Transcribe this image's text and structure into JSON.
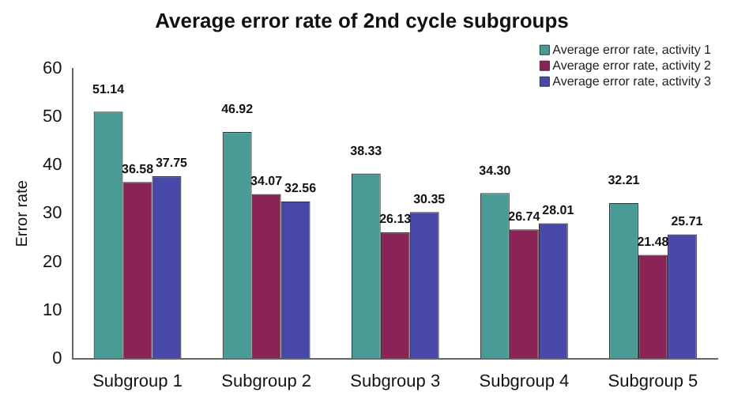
{
  "chart_data": {
    "type": "bar",
    "title": "Average error rate of 2nd cycle subgroups",
    "ylabel": "Error rate",
    "categories": [
      "Subgroup 1",
      "Subgroup 2",
      "Subgroup 3",
      "Subgroup 4",
      "Subgroup 5"
    ],
    "series": [
      {
        "name": "Average error rate, activity 1",
        "color": "#4a9a96",
        "values": [
          51.14,
          46.92,
          38.33,
          34.3,
          32.21
        ],
        "value_labels": [
          "51.14",
          "46.92",
          "38.33",
          "34.30",
          "32.21"
        ]
      },
      {
        "name": "Average error rate, activity 2",
        "color": "#8a2456",
        "values": [
          36.58,
          34.07,
          26.13,
          26.74,
          21.48
        ],
        "value_labels": [
          "36.58",
          "34.07",
          "26.13",
          "26.74",
          "21.48"
        ]
      },
      {
        "name": "Average error rate, activity 3",
        "color": "#4848a8",
        "values": [
          37.75,
          32.56,
          30.35,
          28.01,
          25.71
        ],
        "value_labels": [
          "37.75",
          "32.56",
          "30.35",
          "28.01",
          "25.71"
        ]
      }
    ],
    "ylim": [
      0,
      60
    ],
    "yticks": [
      0,
      10,
      20,
      30,
      40,
      50,
      60
    ],
    "grid": false,
    "legend": "top right"
  }
}
